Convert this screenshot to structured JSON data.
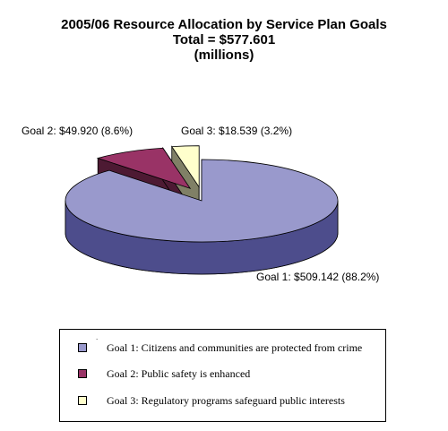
{
  "chart_data": {
    "type": "pie",
    "title_lines": [
      "2005/06 Resource Allocation by Service Plan Goals",
      "Total = $577.601",
      "(millions)"
    ],
    "slices": [
      {
        "name": "Goal 1",
        "value": 509.142,
        "percent": 88.2,
        "label": "Goal 1: $509.142 (88.2%)",
        "legend": "Goal 1: Citizens and communities are protected from crime",
        "color": "#9999cc",
        "side_color": "#4d4d8c",
        "exploded": false
      },
      {
        "name": "Goal 2",
        "value": 49.92,
        "percent": 8.6,
        "label": "Goal 2: $49.920 (8.6%)",
        "legend": "Goal 2: Public safety is enhanced",
        "color": "#993366",
        "side_color": "#4d1a33",
        "exploded": true
      },
      {
        "name": "Goal 3",
        "value": 18.539,
        "percent": 3.2,
        "label": "Goal 3: $18.539 (3.2%)",
        "legend": "Goal 3: Regulatory programs safeguard public interests",
        "color": "#ffffcc",
        "side_color": "#808066",
        "exploded": true
      }
    ],
    "legend_placement": "bottom",
    "style": "3d-pie"
  }
}
